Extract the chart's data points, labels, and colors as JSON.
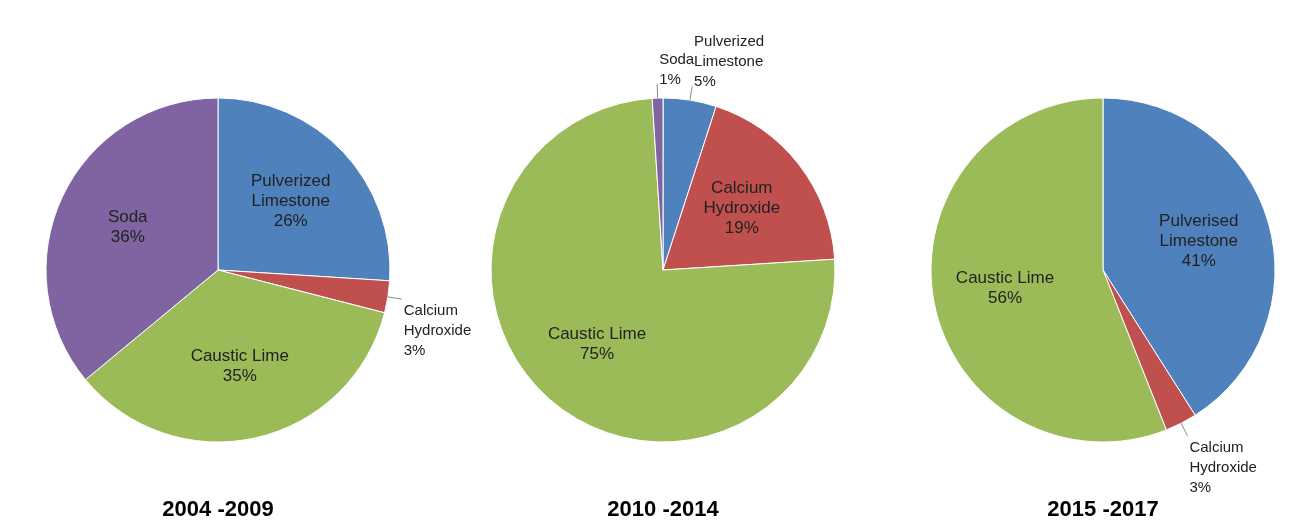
{
  "chart_data": [
    {
      "type": "pie",
      "title": "2004 -2009",
      "categories": [
        "Pulverized Limestone",
        "Calcium Hydroxide",
        "Caustic Lime",
        "Soda"
      ],
      "values": [
        26,
        3,
        35,
        36
      ],
      "value_labels": [
        "26%",
        "3%",
        "35%",
        "36%"
      ],
      "colors": [
        "#4f81bd",
        "#c0504d",
        "#9bbb59",
        "#8064a2"
      ]
    },
    {
      "type": "pie",
      "title": "2010 -2014",
      "categories": [
        "Pulverized Limestone",
        "Calcium Hydroxide",
        "Caustic Lime",
        "Soda"
      ],
      "values": [
        5,
        19,
        75,
        1
      ],
      "value_labels": [
        "5%",
        "19%",
        "75%",
        "1%"
      ],
      "colors": [
        "#4f81bd",
        "#c0504d",
        "#9bbb59",
        "#8064a2"
      ]
    },
    {
      "type": "pie",
      "title": "2015 -2017",
      "categories": [
        "Pulverised Limestone",
        "Calcium Hydroxide",
        "Caustic Lime"
      ],
      "values": [
        41,
        3,
        56
      ],
      "value_labels": [
        "41%",
        "3%",
        "56%"
      ],
      "colors": [
        "#4f81bd",
        "#c0504d",
        "#9bbb59"
      ]
    }
  ]
}
